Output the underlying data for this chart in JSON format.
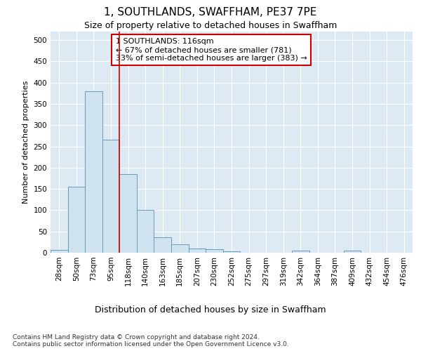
{
  "title": "1, SOUTHLANDS, SWAFFHAM, PE37 7PE",
  "subtitle": "Size of property relative to detached houses in Swaffham",
  "xlabel": "Distribution of detached houses by size in Swaffham",
  "ylabel": "Number of detached properties",
  "categories": [
    "28sqm",
    "50sqm",
    "73sqm",
    "95sqm",
    "118sqm",
    "140sqm",
    "163sqm",
    "185sqm",
    "207sqm",
    "230sqm",
    "252sqm",
    "275sqm",
    "297sqm",
    "319sqm",
    "342sqm",
    "364sqm",
    "387sqm",
    "409sqm",
    "432sqm",
    "454sqm",
    "476sqm"
  ],
  "values": [
    6,
    155,
    380,
    265,
    185,
    100,
    36,
    20,
    10,
    9,
    3,
    0,
    0,
    0,
    5,
    0,
    0,
    5,
    0,
    0,
    0
  ],
  "bar_color": "#d0e4f0",
  "bar_edge_color": "#6699bb",
  "vline_index": 3.5,
  "vline_color": "#cc0000",
  "annotation_text": "1 SOUTHLANDS: 116sqm\n← 67% of detached houses are smaller (781)\n33% of semi-detached houses are larger (383) →",
  "annotation_box_color": "#ffffff",
  "annotation_box_edge_color": "#cc0000",
  "ylim": [
    0,
    520
  ],
  "yticks": [
    0,
    50,
    100,
    150,
    200,
    250,
    300,
    350,
    400,
    450,
    500
  ],
  "plot_bg_color": "#ddeaf4",
  "footnote": "Contains HM Land Registry data © Crown copyright and database right 2024.\nContains public sector information licensed under the Open Government Licence v3.0.",
  "title_fontsize": 11,
  "subtitle_fontsize": 9,
  "xlabel_fontsize": 9,
  "ylabel_fontsize": 8,
  "tick_fontsize": 7.5,
  "annotation_fontsize": 8,
  "footnote_fontsize": 6.5
}
